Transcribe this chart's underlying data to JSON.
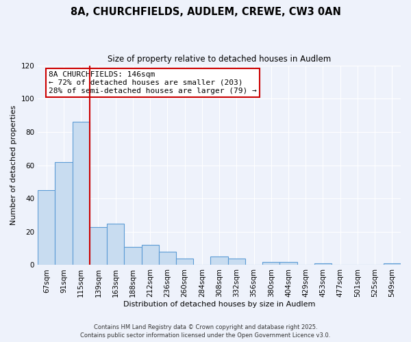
{
  "title": "8A, CHURCHFIELDS, AUDLEM, CREWE, CW3 0AN",
  "subtitle": "Size of property relative to detached houses in Audlem",
  "xlabel": "Distribution of detached houses by size in Audlem",
  "ylabel": "Number of detached properties",
  "bin_labels": [
    "67sqm",
    "91sqm",
    "115sqm",
    "139sqm",
    "163sqm",
    "188sqm",
    "212sqm",
    "236sqm",
    "260sqm",
    "284sqm",
    "308sqm",
    "332sqm",
    "356sqm",
    "380sqm",
    "404sqm",
    "429sqm",
    "453sqm",
    "477sqm",
    "501sqm",
    "525sqm",
    "549sqm"
  ],
  "bar_heights": [
    45,
    62,
    86,
    23,
    25,
    11,
    12,
    8,
    4,
    0,
    5,
    4,
    0,
    2,
    2,
    0,
    1,
    0,
    0,
    0,
    1
  ],
  "bar_color": "#c8dcf0",
  "bar_edge_color": "#5b9bd5",
  "vline_color": "#cc0000",
  "annotation_title": "8A CHURCHFIELDS: 146sqm",
  "annotation_line1": "← 72% of detached houses are smaller (203)",
  "annotation_line2": "28% of semi-detached houses are larger (79) →",
  "annotation_box_color": "#ffffff",
  "annotation_box_edge": "#cc0000",
  "ylim": [
    0,
    120
  ],
  "yticks": [
    0,
    20,
    40,
    60,
    80,
    100,
    120
  ],
  "background_color": "#eef2fb",
  "footer1": "Contains HM Land Registry data © Crown copyright and database right 2025.",
  "footer2": "Contains public sector information licensed under the Open Government Licence v3.0."
}
